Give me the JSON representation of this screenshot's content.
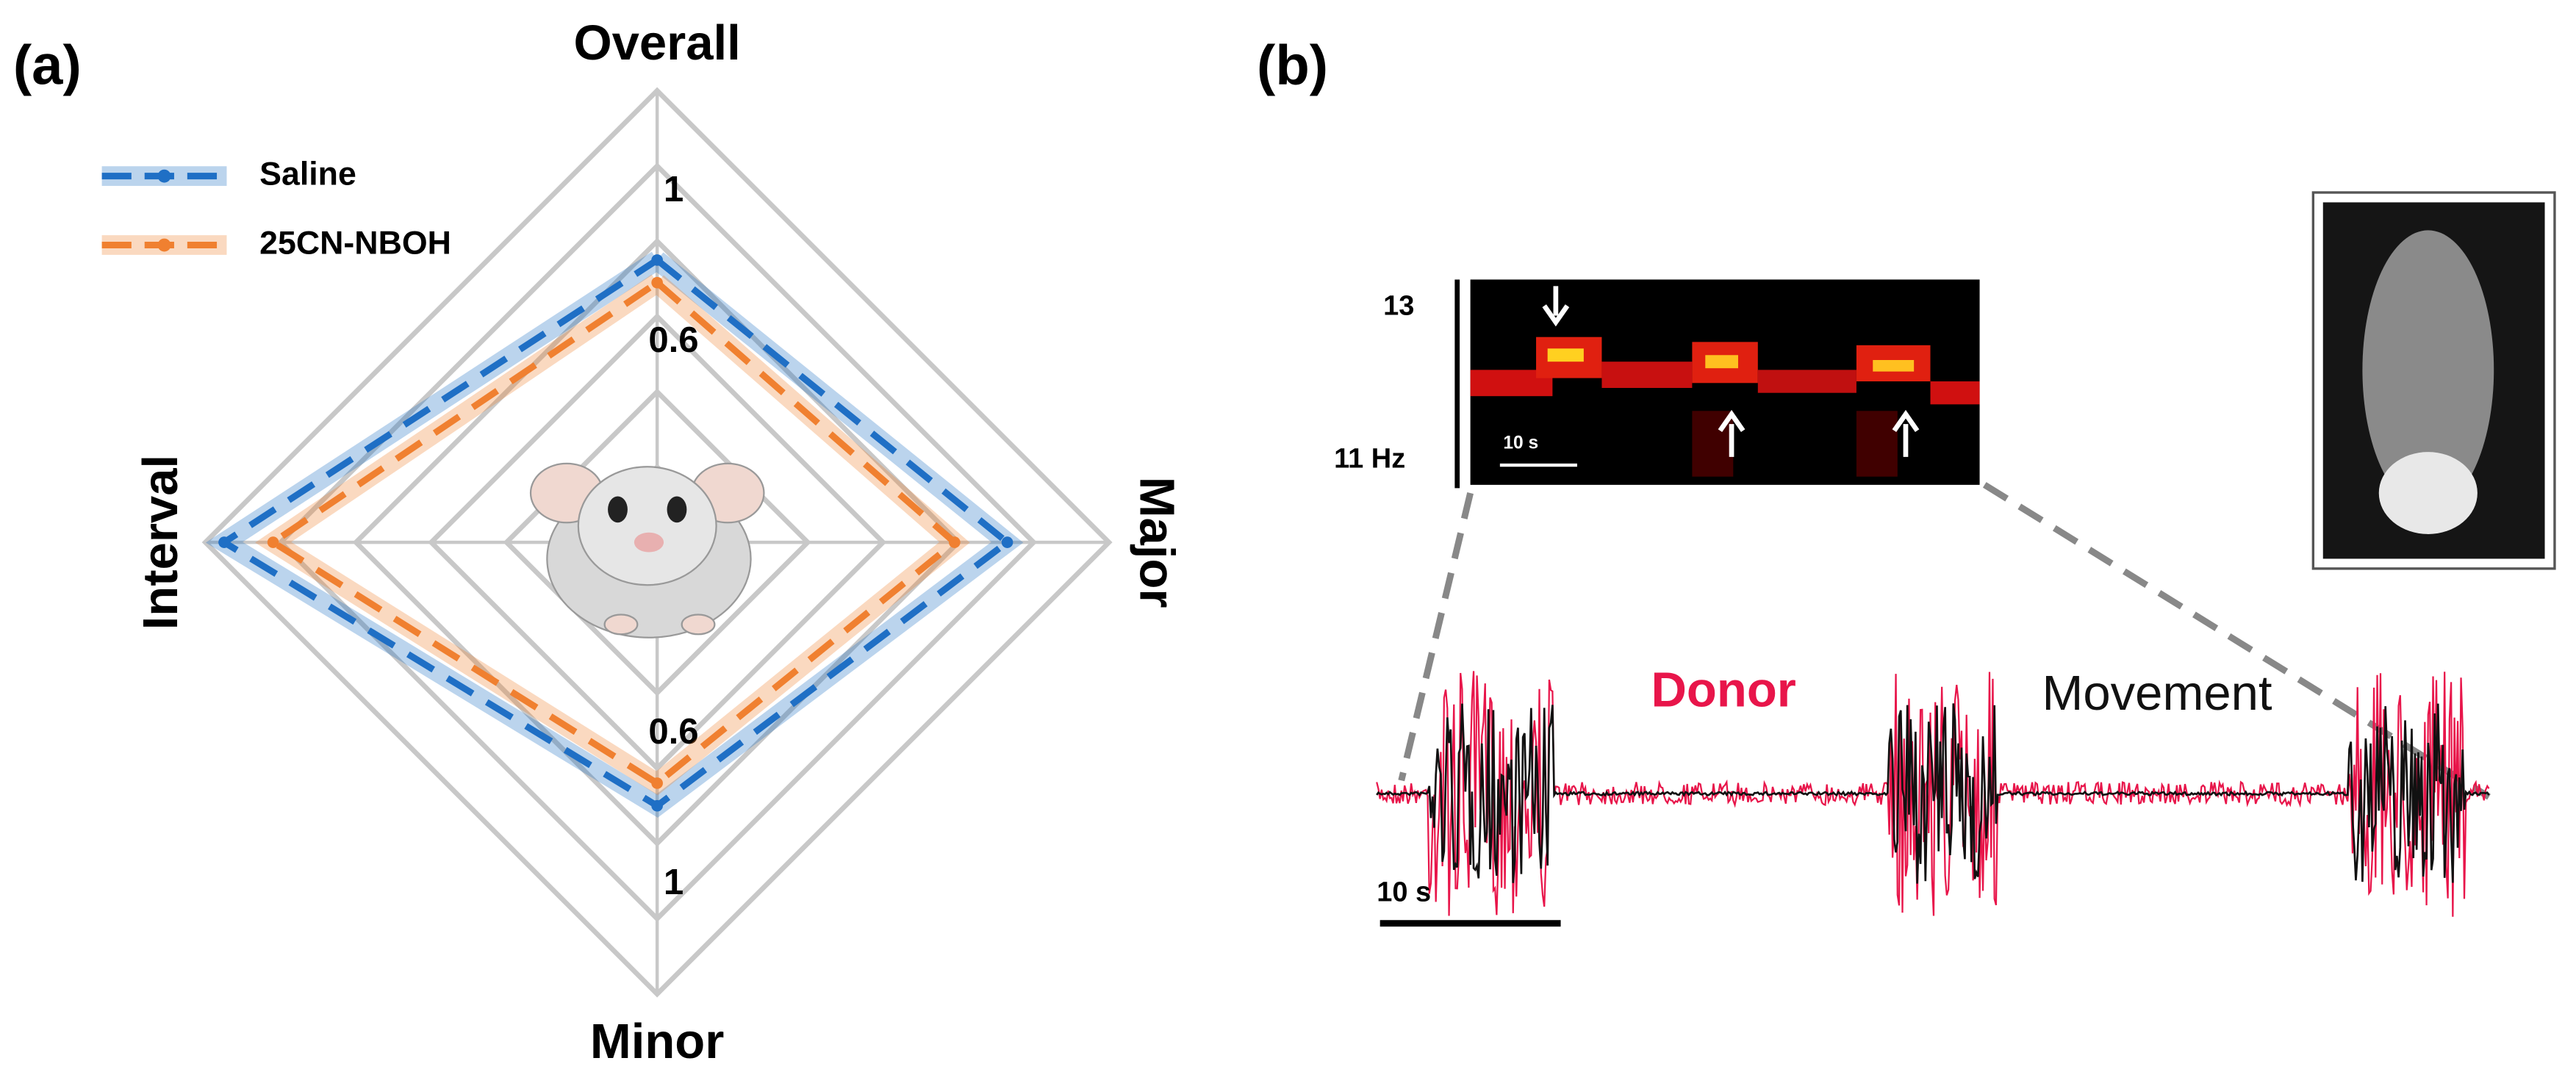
{
  "panel_labels": [
    "(a)",
    "(b)"
  ],
  "chart_data": {
    "type": "radar",
    "categories": [
      "Overall",
      "Major",
      "Minor",
      "Interval"
    ],
    "series": [
      {
        "name": "Saline",
        "color": "#1f6fc5",
        "values": [
          0.95,
          1.13,
          0.9,
          1.35
        ]
      },
      {
        "name": "25CN-NBOH",
        "color": "#f08030",
        "values": [
          0.89,
          0.99,
          0.84,
          1.22
        ]
      }
    ],
    "ylim": [
      0.2,
      1.4
    ],
    "yticks": [
      0.6,
      1.0
    ],
    "rings": [
      0.4,
      0.6,
      0.8,
      1.0,
      1.2,
      1.4
    ],
    "legend": "upper left"
  },
  "panel_b": {
    "freq_labels": [
      "13",
      "11 Hz"
    ],
    "spectrogram_scale": "10 s",
    "trace_labels": [
      "Donor",
      "Movement"
    ],
    "trace_scale": "10 s"
  }
}
